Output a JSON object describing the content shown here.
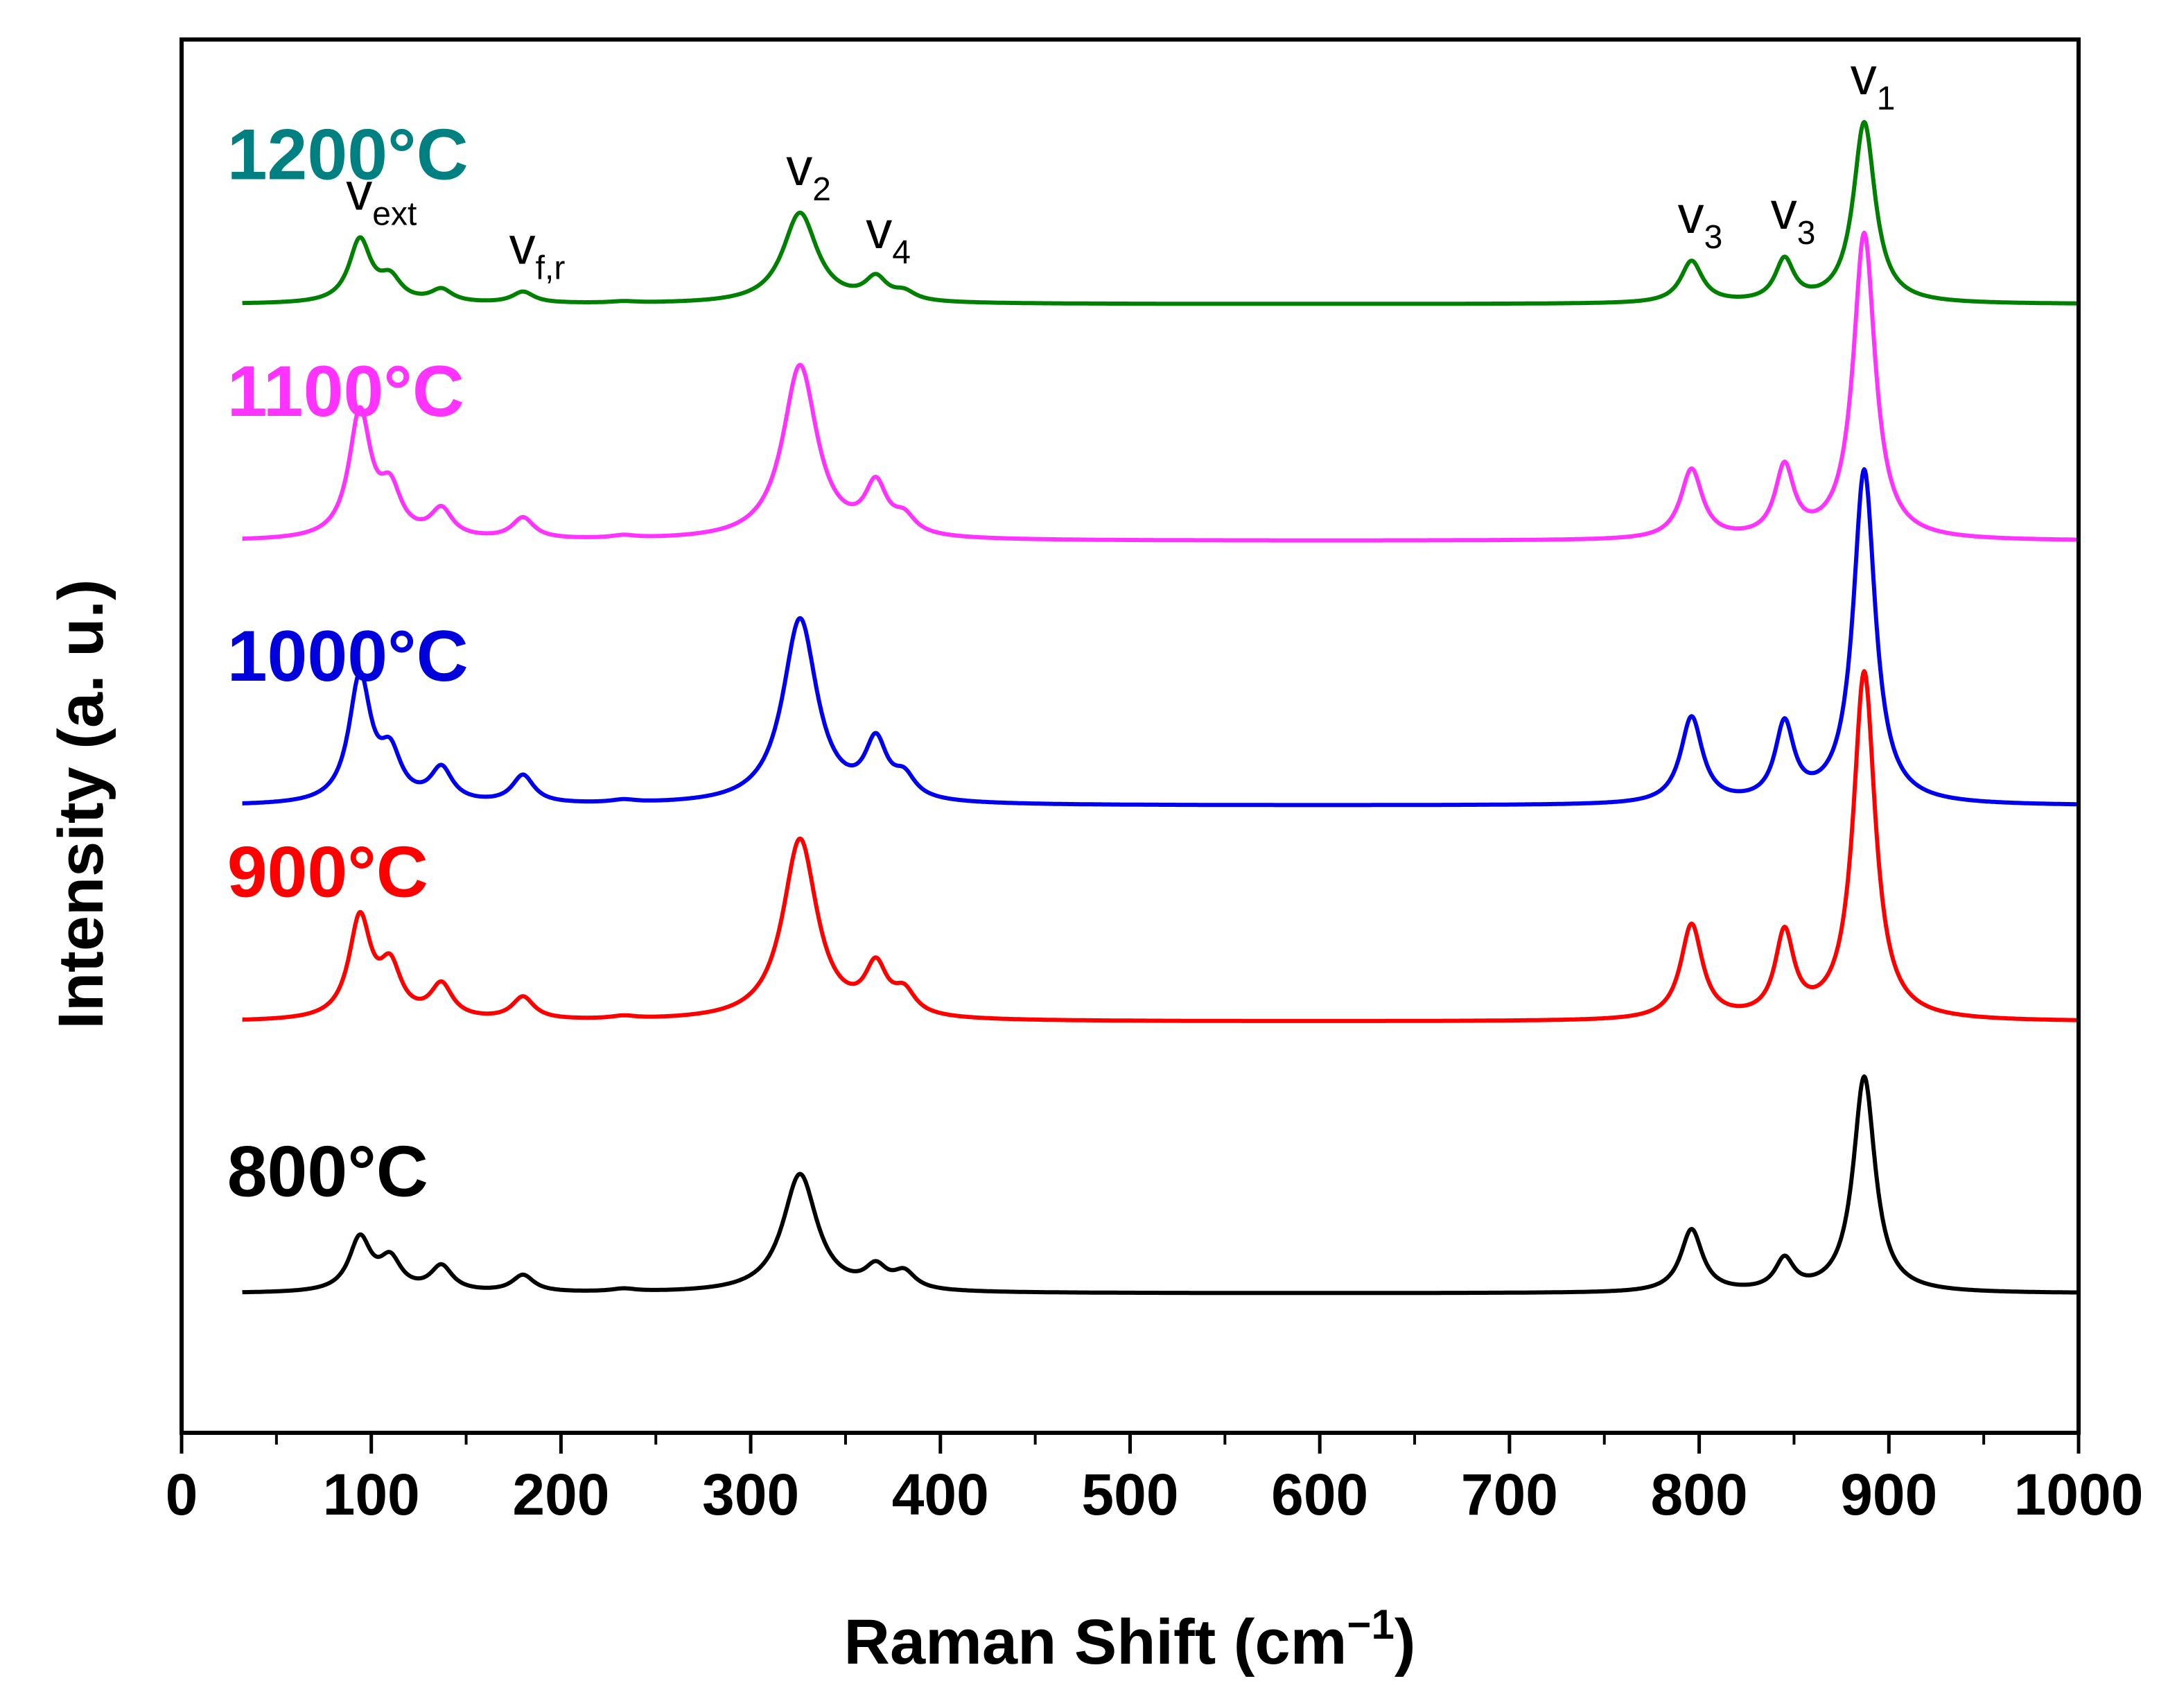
{
  "chart_data": {
    "type": "line",
    "title": "",
    "xlabel": "Raman Shift (cm",
    "xlabel_sup": "−1",
    "xlabel_end": ")",
    "ylabel": "Intensity (a. u.)",
    "xlim": [
      0,
      1000
    ],
    "ylim": [
      0,
      10
    ],
    "x_ticks": [
      0,
      100,
      200,
      300,
      400,
      500,
      600,
      700,
      800,
      900,
      1000
    ],
    "x_tick_labels": [
      "0",
      "100",
      "200",
      "300",
      "400",
      "500",
      "600",
      "700",
      "800",
      "900",
      "1000"
    ],
    "x_range": [
      32,
      1000
    ],
    "grid": false,
    "y_ticks_labeled": false,
    "series": [
      {
        "name": "800°C",
        "color": "#000000",
        "baseline": 1.0,
        "peaks": [
          [
            94,
            0.38,
            7
          ],
          [
            110,
            0.22,
            7
          ],
          [
            137,
            0.18,
            7
          ],
          [
            180,
            0.12,
            7
          ],
          [
            233,
            0.02,
            8
          ],
          [
            326,
            0.85,
            11
          ],
          [
            366,
            0.15,
            7
          ],
          [
            381,
            0.12,
            7
          ],
          [
            796,
            0.45,
            7
          ],
          [
            845,
            0.22,
            6
          ],
          [
            887,
            1.55,
            7
          ]
        ]
      },
      {
        "name": "900°C",
        "color": "#ff0000",
        "baseline": 2.95,
        "peaks": [
          [
            94,
            0.72,
            7
          ],
          [
            110,
            0.35,
            7
          ],
          [
            137,
            0.24,
            7
          ],
          [
            180,
            0.16,
            7
          ],
          [
            233,
            0.02,
            8
          ],
          [
            326,
            1.3,
            11
          ],
          [
            366,
            0.34,
            7
          ],
          [
            381,
            0.16,
            7
          ],
          [
            796,
            0.68,
            7
          ],
          [
            845,
            0.6,
            6
          ],
          [
            887,
            2.5,
            7
          ]
        ]
      },
      {
        "name": "1000°C",
        "color": "#0000ee",
        "baseline": 4.5,
        "peaks": [
          [
            94,
            0.9,
            7
          ],
          [
            110,
            0.32,
            7
          ],
          [
            137,
            0.24,
            7
          ],
          [
            180,
            0.2,
            7
          ],
          [
            233,
            0.02,
            8
          ],
          [
            326,
            1.33,
            11
          ],
          [
            366,
            0.4,
            7
          ],
          [
            381,
            0.15,
            7
          ],
          [
            796,
            0.62,
            7
          ],
          [
            845,
            0.55,
            6
          ],
          [
            887,
            2.4,
            7
          ]
        ]
      },
      {
        "name": "1100°C",
        "color": "#ff33ff",
        "baseline": 6.4,
        "peaks": [
          [
            94,
            0.9,
            7
          ],
          [
            110,
            0.32,
            7
          ],
          [
            137,
            0.2,
            7
          ],
          [
            180,
            0.15,
            7
          ],
          [
            233,
            0.02,
            8
          ],
          [
            326,
            1.25,
            11
          ],
          [
            366,
            0.35,
            7
          ],
          [
            381,
            0.12,
            7
          ],
          [
            796,
            0.5,
            7
          ],
          [
            845,
            0.5,
            6
          ],
          [
            887,
            2.2,
            7
          ]
        ]
      },
      {
        "name": "1200°C",
        "color": "#008000",
        "baseline": 8.1,
        "peaks": [
          [
            94,
            0.45,
            7
          ],
          [
            110,
            0.16,
            7
          ],
          [
            137,
            0.09,
            7
          ],
          [
            180,
            0.08,
            7
          ],
          [
            233,
            0.01,
            8
          ],
          [
            326,
            0.65,
            11
          ],
          [
            366,
            0.16,
            7
          ],
          [
            381,
            0.06,
            7
          ],
          [
            796,
            0.3,
            7
          ],
          [
            845,
            0.3,
            6
          ],
          [
            887,
            1.3,
            7
          ]
        ]
      }
    ],
    "series_label_colors": [
      "#000000",
      "#ff0000",
      "#0000dd",
      "#ff33ff",
      "#008080"
    ],
    "peak_annotations": [
      {
        "x": 94,
        "letter": "v",
        "sub": "ext"
      },
      {
        "x": 180,
        "letter": "v",
        "sub": "f,r"
      },
      {
        "x": 326,
        "letter": "v",
        "sub": "2"
      },
      {
        "x": 368,
        "letter": "v",
        "sub": "4"
      },
      {
        "x": 796,
        "letter": "v",
        "sub": "3"
      },
      {
        "x": 845,
        "letter": "v",
        "sub": "3"
      },
      {
        "x": 887,
        "letter": "v",
        "sub": "1"
      }
    ]
  }
}
